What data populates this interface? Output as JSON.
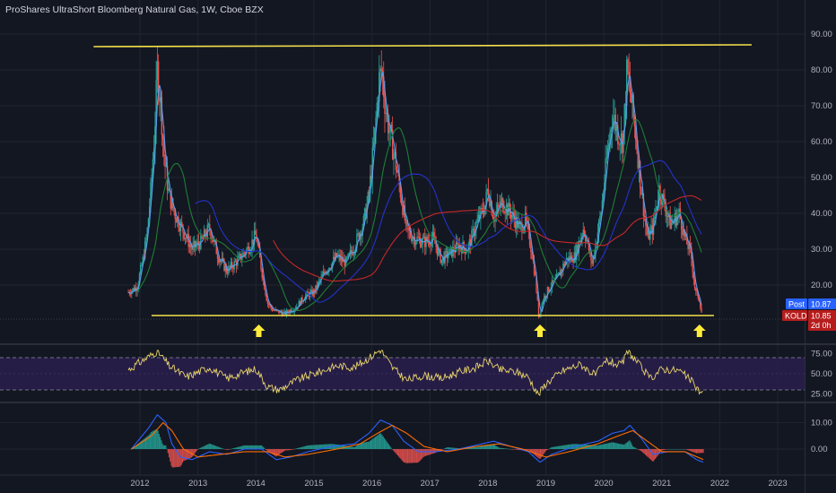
{
  "header": {
    "title": "ProShares UltraShort Bloomberg Natural Gas, 1W, Cboe BZX"
  },
  "badges": {
    "post_label": "Post",
    "post_value": "10.87",
    "symbol_label": "KOLD",
    "symbol_value": "10.85",
    "countdown": "2d 0h"
  },
  "colors": {
    "background": "#131722",
    "grid": "#1f2430",
    "axis_text": "#b2b5be",
    "bull": "#26a69a",
    "bear": "#ef5350",
    "support_line": "#f5e14b",
    "arrow": "#ffeb3b",
    "rsi_line": "#e8d46b",
    "rsi_band": "#2a1f4d",
    "macd_line": "#2962ff",
    "signal_line": "#ff6d00",
    "post_badge": "#2962ff",
    "kold_badge": "#b71c1c"
  },
  "chart_data": [
    {
      "type": "candlestick",
      "name": "price",
      "x_axis": {
        "ticks": [
          "2012",
          "2013",
          "2014",
          "2015",
          "2016",
          "2017",
          "2018",
          "2019",
          "2020",
          "2021",
          "2022",
          "2023"
        ],
        "range": [
          2011.2,
          2023.5
        ]
      },
      "y_axis": {
        "ticks": [
          "90.00",
          "80.00",
          "70.00",
          "60.00",
          "50.00",
          "40.00",
          "30.00",
          "20.00"
        ],
        "range": [
          8,
          95
        ]
      },
      "price_path": [
        [
          2011.8,
          18
        ],
        [
          2011.95,
          19.5
        ],
        [
          2012.05,
          27
        ],
        [
          2012.12,
          34
        ],
        [
          2012.18,
          45
        ],
        [
          2012.25,
          62
        ],
        [
          2012.3,
          80
        ],
        [
          2012.36,
          70
        ],
        [
          2012.42,
          55
        ],
        [
          2012.5,
          45
        ],
        [
          2012.6,
          40
        ],
        [
          2012.75,
          35
        ],
        [
          2012.9,
          30
        ],
        [
          2013.05,
          32
        ],
        [
          2013.2,
          36
        ],
        [
          2013.35,
          28
        ],
        [
          2013.5,
          24
        ],
        [
          2013.7,
          27
        ],
        [
          2013.9,
          31
        ],
        [
          2014.0,
          34
        ],
        [
          2014.05,
          29
        ],
        [
          2014.12,
          22
        ],
        [
          2014.2,
          15
        ],
        [
          2014.3,
          13
        ],
        [
          2014.5,
          12
        ],
        [
          2014.7,
          14
        ],
        [
          2014.85,
          17
        ],
        [
          2015.0,
          18
        ],
        [
          2015.2,
          24
        ],
        [
          2015.4,
          28
        ],
        [
          2015.55,
          26
        ],
        [
          2015.7,
          31
        ],
        [
          2015.85,
          37
        ],
        [
          2015.95,
          45
        ],
        [
          2016.05,
          62
        ],
        [
          2016.12,
          77
        ],
        [
          2016.17,
          80
        ],
        [
          2016.23,
          70
        ],
        [
          2016.3,
          63
        ],
        [
          2016.4,
          55
        ],
        [
          2016.5,
          45
        ],
        [
          2016.6,
          35
        ],
        [
          2016.75,
          33
        ],
        [
          2016.9,
          32
        ],
        [
          2017.05,
          33
        ],
        [
          2017.2,
          27
        ],
        [
          2017.35,
          29
        ],
        [
          2017.5,
          31
        ],
        [
          2017.65,
          30
        ],
        [
          2017.8,
          37
        ],
        [
          2017.95,
          42
        ],
        [
          2018.0,
          47
        ],
        [
          2018.1,
          39
        ],
        [
          2018.25,
          43
        ],
        [
          2018.4,
          40
        ],
        [
          2018.55,
          36
        ],
        [
          2018.65,
          38
        ],
        [
          2018.75,
          30
        ],
        [
          2018.82,
          22
        ],
        [
          2018.88,
          11
        ],
        [
          2018.95,
          16
        ],
        [
          2019.05,
          19
        ],
        [
          2019.2,
          22
        ],
        [
          2019.35,
          27
        ],
        [
          2019.5,
          28
        ],
        [
          2019.65,
          36
        ],
        [
          2019.8,
          26
        ],
        [
          2019.95,
          40
        ],
        [
          2020.05,
          55
        ],
        [
          2020.15,
          68
        ],
        [
          2020.25,
          62
        ],
        [
          2020.33,
          60
        ],
        [
          2020.4,
          80
        ],
        [
          2020.45,
          74
        ],
        [
          2020.55,
          62
        ],
        [
          2020.65,
          46
        ],
        [
          2020.75,
          33
        ],
        [
          2020.85,
          36
        ],
        [
          2020.95,
          47
        ],
        [
          2021.05,
          42
        ],
        [
          2021.15,
          37
        ],
        [
          2021.3,
          40
        ],
        [
          2021.4,
          33
        ],
        [
          2021.5,
          29
        ],
        [
          2021.58,
          18
        ],
        [
          2021.65,
          16
        ],
        [
          2021.7,
          11
        ]
      ],
      "overlays": [
        {
          "name": "short MA",
          "color": "#5c9ded"
        },
        {
          "name": "medium MA",
          "color": "#1e7e34"
        },
        {
          "name": "long MA 1",
          "color": "#2433c9"
        },
        {
          "name": "long MA 2",
          "color": "#c62828"
        }
      ],
      "annotations": {
        "resistance_line": {
          "from": [
            2011.2,
            84
          ],
          "to": [
            2022.55,
            85
          ]
        },
        "support_line": {
          "from": [
            2012.2,
            11.5
          ],
          "to": [
            2021.9,
            11.5
          ]
        },
        "arrows_x": [
          2014.05,
          2018.9,
          2021.65
        ]
      }
    },
    {
      "type": "line",
      "name": "RSI",
      "y_axis": {
        "ticks": [
          "75.00",
          "50.00",
          "25.00"
        ],
        "range": [
          20,
          80
        ]
      },
      "bands": [
        30,
        70
      ],
      "values": [
        [
          2011.8,
          55
        ],
        [
          2012.3,
          78
        ],
        [
          2012.5,
          60
        ],
        [
          2012.8,
          46
        ],
        [
          2013.2,
          58
        ],
        [
          2013.5,
          44
        ],
        [
          2013.8,
          52
        ],
        [
          2014.0,
          56
        ],
        [
          2014.2,
          34
        ],
        [
          2014.4,
          30
        ],
        [
          2014.7,
          42
        ],
        [
          2015.0,
          50
        ],
        [
          2015.4,
          60
        ],
        [
          2015.7,
          58
        ],
        [
          2016.0,
          72
        ],
        [
          2016.15,
          80
        ],
        [
          2016.35,
          58
        ],
        [
          2016.6,
          42
        ],
        [
          2016.9,
          48
        ],
        [
          2017.2,
          44
        ],
        [
          2017.5,
          52
        ],
        [
          2017.8,
          58
        ],
        [
          2018.0,
          66
        ],
        [
          2018.2,
          55
        ],
        [
          2018.5,
          52
        ],
        [
          2018.7,
          46
        ],
        [
          2018.87,
          24
        ],
        [
          2019.0,
          38
        ],
        [
          2019.3,
          54
        ],
        [
          2019.6,
          62
        ],
        [
          2019.85,
          48
        ],
        [
          2020.05,
          66
        ],
        [
          2020.3,
          60
        ],
        [
          2020.42,
          78
        ],
        [
          2020.6,
          62
        ],
        [
          2020.8,
          44
        ],
        [
          2021.0,
          56
        ],
        [
          2021.3,
          54
        ],
        [
          2021.5,
          42
        ],
        [
          2021.65,
          28
        ],
        [
          2021.72,
          26
        ]
      ]
    },
    {
      "type": "bar",
      "name": "MACD",
      "y_axis": {
        "ticks": [
          "10.00",
          "0.00"
        ],
        "range": [
          -6,
          14
        ]
      },
      "macd_line": [
        [
          2011.85,
          0
        ],
        [
          2012.15,
          8
        ],
        [
          2012.3,
          13
        ],
        [
          2012.45,
          10
        ],
        [
          2012.55,
          2
        ],
        [
          2012.7,
          -3
        ],
        [
          2012.9,
          -4
        ],
        [
          2013.2,
          -1
        ],
        [
          2013.5,
          -2
        ],
        [
          2013.8,
          0
        ],
        [
          2014.1,
          0
        ],
        [
          2014.35,
          -4
        ],
        [
          2014.6,
          -3
        ],
        [
          2014.9,
          -1
        ],
        [
          2015.3,
          1
        ],
        [
          2015.7,
          2
        ],
        [
          2015.95,
          6
        ],
        [
          2016.15,
          11
        ],
        [
          2016.35,
          9
        ],
        [
          2016.55,
          3
        ],
        [
          2016.8,
          -1
        ],
        [
          2017.1,
          -1
        ],
        [
          2017.5,
          0
        ],
        [
          2017.9,
          2
        ],
        [
          2018.1,
          3
        ],
        [
          2018.4,
          1
        ],
        [
          2018.7,
          -1
        ],
        [
          2018.9,
          -5
        ],
        [
          2019.1,
          -2
        ],
        [
          2019.5,
          1
        ],
        [
          2019.9,
          3
        ],
        [
          2020.15,
          6
        ],
        [
          2020.35,
          7
        ],
        [
          2020.45,
          9
        ],
        [
          2020.65,
          4
        ],
        [
          2020.85,
          -2
        ],
        [
          2021.1,
          -1
        ],
        [
          2021.4,
          -1
        ],
        [
          2021.6,
          -4
        ],
        [
          2021.72,
          -5
        ]
      ],
      "signal_line": [
        [
          2011.85,
          0
        ],
        [
          2012.2,
          5
        ],
        [
          2012.4,
          10
        ],
        [
          2012.55,
          7
        ],
        [
          2012.75,
          0
        ],
        [
          2013.0,
          -3
        ],
        [
          2013.4,
          -2
        ],
        [
          2013.8,
          -1
        ],
        [
          2014.2,
          -1
        ],
        [
          2014.5,
          -3
        ],
        [
          2014.9,
          -2
        ],
        [
          2015.4,
          0
        ],
        [
          2015.8,
          2
        ],
        [
          2016.1,
          6
        ],
        [
          2016.35,
          9
        ],
        [
          2016.6,
          6
        ],
        [
          2016.9,
          1
        ],
        [
          2017.3,
          -1
        ],
        [
          2017.8,
          1
        ],
        [
          2018.2,
          2
        ],
        [
          2018.6,
          0
        ],
        [
          2019.0,
          -3
        ],
        [
          2019.4,
          -1
        ],
        [
          2019.9,
          2
        ],
        [
          2020.25,
          5
        ],
        [
          2020.5,
          7
        ],
        [
          2020.75,
          3
        ],
        [
          2021.0,
          -1
        ],
        [
          2021.4,
          -1
        ],
        [
          2021.72,
          -4
        ]
      ]
    }
  ]
}
